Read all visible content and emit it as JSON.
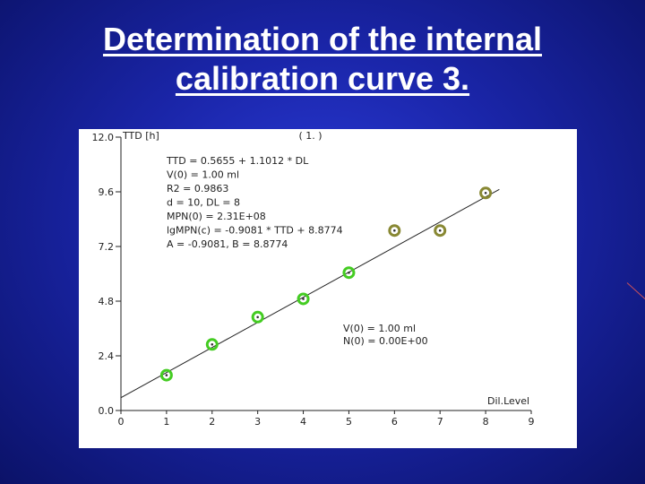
{
  "slide": {
    "title_line1": "Determination of the internal",
    "title_line2": "calibration curve 3."
  },
  "chart_data": {
    "type": "scatter",
    "title": "",
    "panel_label": "( 1. )",
    "xlabel": "Dil.Level",
    "ylabel": "TTD [h]",
    "xlim": [
      0,
      9
    ],
    "ylim": [
      0,
      12
    ],
    "x_ticks": [
      "0",
      "1",
      "2",
      "3",
      "4",
      "5",
      "6",
      "7",
      "8",
      "9"
    ],
    "y_ticks": [
      "0.0",
      "2.4",
      "4.8",
      "7.2",
      "9.6",
      "12.0"
    ],
    "series": [
      {
        "color": "#44cc22",
        "points": [
          [
            1,
            1.55
          ],
          [
            2,
            2.9
          ],
          [
            3,
            4.1
          ],
          [
            4,
            4.9
          ],
          [
            5,
            6.05
          ]
        ]
      },
      {
        "color": "#888833",
        "points": [
          [
            6,
            7.9
          ],
          [
            7,
            7.9
          ],
          [
            8,
            9.55
          ]
        ]
      }
    ],
    "fit_line": {
      "intercept": 0.5655,
      "slope": 1.1012,
      "x_range": [
        0,
        8.3
      ],
      "color": "#222222"
    },
    "annotation_block_1": [
      "TTD = 0.5655 + 1.1012 * DL",
      "V(0) = 1.00 ml",
      "R2 = 0.9863",
      "d = 10, DL = 8",
      "MPN(0) = 2.31E+08",
      "lgMPN(c) = -0.9081 * TTD + 8.8774",
      "A = -0.9081, B = 8.8774"
    ],
    "annotation_block_2": [
      "V(0) = 1.00 ml",
      "N(0) = 0.00E+00"
    ],
    "grid": false,
    "colors": {
      "fit_line": "#222222",
      "early_points": "#44cc22",
      "late_points": "#888833"
    }
  }
}
